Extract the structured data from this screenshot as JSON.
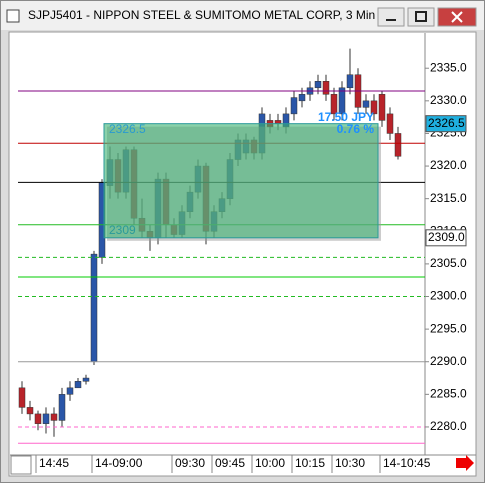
{
  "chart_data": {
    "type": "candlestick",
    "title": "SJPJ5401 - NIPPON STEEL & SUMITOMO METAL CORP, 3 Min",
    "categories": [
      null,
      null,
      null,
      null,
      "14:45",
      null,
      null,
      null,
      null,
      null,
      null,
      "14-09:00",
      null,
      null,
      null,
      null,
      null,
      null,
      null,
      null,
      null,
      "09:30",
      null,
      null,
      null,
      null,
      "09:45",
      null,
      null,
      null,
      null,
      "10:00",
      null,
      null,
      null,
      null,
      "10:15",
      null,
      null,
      null,
      null,
      "10:30",
      null,
      null,
      null,
      null,
      null,
      "14-10:45"
    ],
    "open": [
      2286,
      2283,
      2282,
      2280.5,
      2282,
      2281,
      2285,
      2286,
      2287,
      2290,
      2306,
      2317,
      2321,
      2316,
      2322.5,
      2312,
      2310,
      2309,
      2318,
      2311,
      2309.5,
      2313,
      2316,
      2320,
      2310,
      2313,
      2315,
      2321,
      2322,
      2324,
      2322,
      2327,
      2327,
      2326,
      2328,
      2330,
      2331,
      2332,
      2333,
      2331,
      2328,
      2332,
      2334,
      2329,
      2330,
      2331,
      2328,
      2325
    ],
    "high": [
      2287,
      2284,
      2282.5,
      2283,
      2283,
      2286,
      2287,
      2287.5,
      2288,
      2307,
      2318,
      2323,
      2322,
      2323,
      2323,
      2315,
      2311,
      2319,
      2319,
      2312,
      2314,
      2317,
      2321,
      2320.5,
      2314,
      2316,
      2322,
      2325,
      2325,
      2324.5,
      2329,
      2328,
      2328,
      2329,
      2331.5,
      2332,
      2333,
      2334,
      2334,
      2332,
      2333,
      2338,
      2335,
      2331,
      2331,
      2331.5,
      2329,
      2326
    ],
    "low": [
      2282,
      2281,
      2279.5,
      2279,
      2278.5,
      2280,
      2284,
      2286,
      2286.5,
      2289.5,
      2305,
      2315,
      2315,
      2315,
      2311,
      2309,
      2307,
      2308,
      2309,
      2309,
      2309,
      2312,
      2315,
      2308,
      2309,
      2312,
      2314,
      2320,
      2321,
      2321,
      2321,
      2325,
      2325.5,
      2325,
      2327,
      2329,
      2330,
      2331,
      2330,
      2327,
      2327,
      2331,
      2328,
      2328,
      2327,
      2326,
      2324,
      2321
    ],
    "close": [
      2283,
      2282,
      2280.5,
      2282,
      2281,
      2285,
      2286,
      2287,
      2287.5,
      2306.5,
      2317.5,
      2321,
      2316,
      2322.5,
      2312,
      2310,
      2309,
      2318,
      2311,
      2309.5,
      2313,
      2316,
      2320,
      2310,
      2313,
      2315,
      2321,
      2324,
      2324,
      2322,
      2328,
      2326,
      2326.5,
      2328,
      2330.5,
      2331,
      2332,
      2333,
      2331,
      2328,
      2332,
      2334,
      2329,
      2330,
      2328,
      2327,
      2325,
      2321.5
    ],
    "up_color": "#2a56a8",
    "down_color": "#b8232a",
    "ylim": [
      2275.7,
      2340.4
    ],
    "yticks": [
      {
        "value": 2280,
        "label": "2280.0"
      },
      {
        "value": 2285,
        "label": "2285.0"
      },
      {
        "value": 2290,
        "label": "2290.0"
      },
      {
        "value": 2295,
        "label": "2295.0"
      },
      {
        "value": 2300,
        "label": "2300.0"
      },
      {
        "value": 2305,
        "label": "2305.0"
      },
      {
        "value": 2310,
        "label": "2310.0"
      },
      {
        "value": 2315,
        "label": "2315.0"
      },
      {
        "value": 2320,
        "label": "2320.0"
      },
      {
        "value": 2325,
        "label": "2325.0"
      },
      {
        "value": 2330,
        "label": "2330.0"
      },
      {
        "value": 2335,
        "label": "2335.0"
      }
    ],
    "levels": [
      {
        "value": 2331.5,
        "color": "#800080"
      },
      {
        "value": 2323.5,
        "color": "#c00000"
      },
      {
        "value": 2317.5,
        "color": "#000000"
      },
      {
        "value": 2311,
        "color": "#22bb22"
      },
      {
        "value": 2306,
        "color": "#22bb22",
        "dashed": true
      },
      {
        "value": 2303,
        "color": "#00cc00"
      },
      {
        "value": 2300,
        "color": "#22bb22",
        "dashed": true
      },
      {
        "value": 2290,
        "color": "#999999"
      },
      {
        "value": 2280,
        "color": "#ff66cc",
        "dashed": true
      },
      {
        "value": 2277.5,
        "color": "#ff66cc"
      }
    ],
    "box": {
      "high": 2326.5,
      "low": 2309,
      "change_label": "17.50 JPY",
      "percent_label": "0.76 %",
      "color": "#3cb371"
    },
    "price_markers": [
      {
        "value": 2326.5,
        "color": "#1fb0e0"
      },
      {
        "value": 2309,
        "label": "2309.0",
        "color": "#ffffff"
      }
    ]
  }
}
